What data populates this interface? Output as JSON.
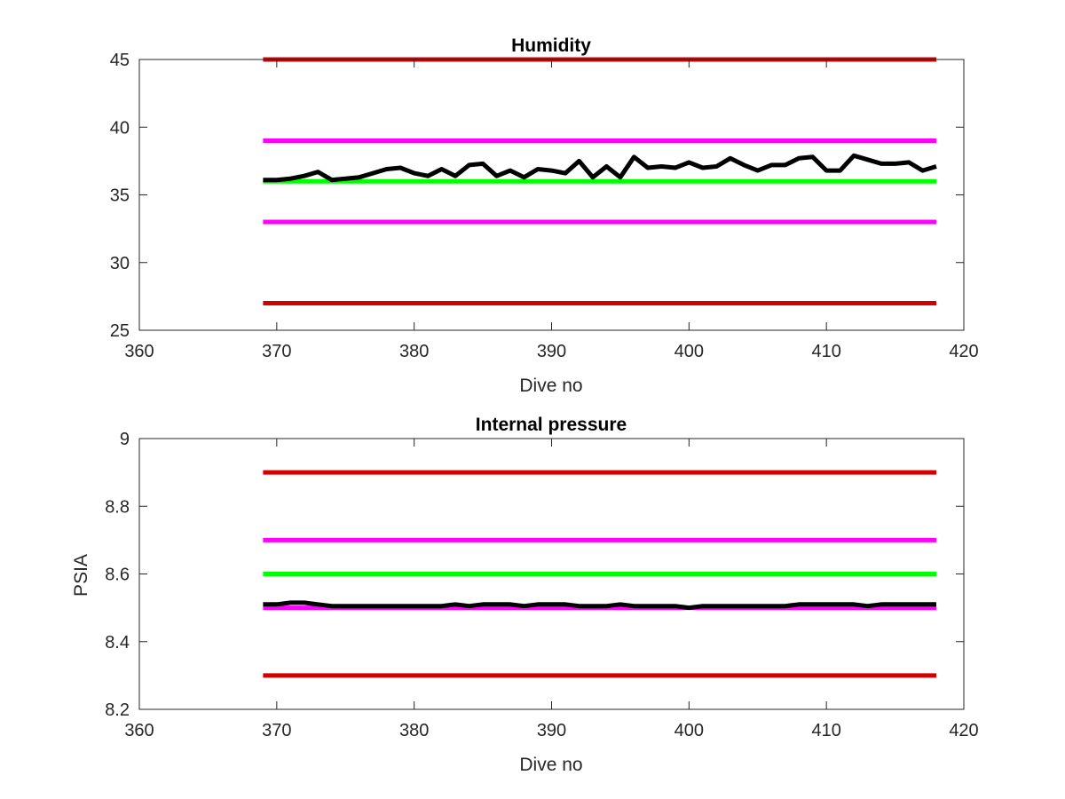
{
  "chart_data": [
    {
      "type": "line",
      "title": "Humidity",
      "xlabel": "Dive no",
      "ylabel": "",
      "xlim": [
        360,
        420
      ],
      "ylim": [
        25,
        45
      ],
      "xticks": [
        "360",
        "370",
        "380",
        "390",
        "400",
        "410",
        "420"
      ],
      "yticks": [
        "25",
        "30",
        "35",
        "40",
        "45"
      ],
      "series": [
        {
          "color": "#d40000",
          "x": [
            369,
            418
          ],
          "values": [
            45,
            45
          ]
        },
        {
          "color": "#ff00ff",
          "x": [
            369,
            418
          ],
          "values": [
            39,
            39
          ]
        },
        {
          "color": "#00ff00",
          "x": [
            369,
            418
          ],
          "values": [
            36,
            36
          ]
        },
        {
          "color": "#ff00ff",
          "x": [
            369,
            418
          ],
          "values": [
            33,
            33
          ]
        },
        {
          "color": "#d40000",
          "x": [
            369,
            418
          ],
          "values": [
            27,
            27
          ]
        },
        {
          "color": "#000000",
          "x": [
            369,
            370,
            371,
            372,
            373,
            374,
            375,
            376,
            377,
            378,
            379,
            380,
            381,
            382,
            383,
            384,
            385,
            386,
            387,
            388,
            389,
            390,
            391,
            392,
            393,
            394,
            395,
            396,
            397,
            398,
            399,
            400,
            401,
            402,
            403,
            404,
            405,
            406,
            407,
            408,
            409,
            410,
            411,
            412,
            413,
            414,
            415,
            416,
            417,
            418
          ],
          "values": [
            36.1,
            36.1,
            36.2,
            36.4,
            36.7,
            36.1,
            36.2,
            36.3,
            36.6,
            36.9,
            37.0,
            36.6,
            36.4,
            36.9,
            36.4,
            37.2,
            37.3,
            36.4,
            36.8,
            36.3,
            36.9,
            36.8,
            36.6,
            37.5,
            36.3,
            37.1,
            36.3,
            37.8,
            37.0,
            37.1,
            37.0,
            37.4,
            37.0,
            37.1,
            37.7,
            37.2,
            36.8,
            37.2,
            37.2,
            37.7,
            37.8,
            36.8,
            36.8,
            37.9,
            37.6,
            37.3,
            37.3,
            37.4,
            36.8,
            37.1
          ]
        }
      ]
    },
    {
      "type": "line",
      "title": "Internal pressure",
      "xlabel": "Dive no",
      "ylabel": "PSIA",
      "xlim": [
        360,
        420
      ],
      "ylim": [
        8.2,
        9.0
      ],
      "xticks": [
        "360",
        "370",
        "380",
        "390",
        "400",
        "410",
        "420"
      ],
      "yticks": [
        "8.2",
        "8.4",
        "8.6",
        "8.8",
        "9"
      ],
      "series": [
        {
          "color": "#d40000",
          "x": [
            369,
            418
          ],
          "values": [
            8.9,
            8.9
          ]
        },
        {
          "color": "#ff00ff",
          "x": [
            369,
            418
          ],
          "values": [
            8.7,
            8.7
          ]
        },
        {
          "color": "#00ff00",
          "x": [
            369,
            418
          ],
          "values": [
            8.6,
            8.6
          ]
        },
        {
          "color": "#ff00ff",
          "x": [
            369,
            418
          ],
          "values": [
            8.5,
            8.5
          ]
        },
        {
          "color": "#d40000",
          "x": [
            369,
            418
          ],
          "values": [
            8.3,
            8.3
          ]
        },
        {
          "color": "#000000",
          "x": [
            369,
            370,
            371,
            372,
            373,
            374,
            375,
            376,
            377,
            378,
            379,
            380,
            381,
            382,
            383,
            384,
            385,
            386,
            387,
            388,
            389,
            390,
            391,
            392,
            393,
            394,
            395,
            396,
            397,
            398,
            399,
            400,
            401,
            402,
            403,
            404,
            405,
            406,
            407,
            408,
            409,
            410,
            411,
            412,
            413,
            414,
            415,
            416,
            417,
            418
          ],
          "values": [
            8.51,
            8.51,
            8.515,
            8.515,
            8.51,
            8.505,
            8.505,
            8.505,
            8.505,
            8.505,
            8.505,
            8.505,
            8.505,
            8.505,
            8.51,
            8.505,
            8.51,
            8.51,
            8.51,
            8.505,
            8.51,
            8.51,
            8.51,
            8.505,
            8.505,
            8.505,
            8.51,
            8.505,
            8.505,
            8.505,
            8.505,
            8.5,
            8.505,
            8.505,
            8.505,
            8.505,
            8.505,
            8.505,
            8.505,
            8.51,
            8.51,
            8.51,
            8.51,
            8.51,
            8.505,
            8.51,
            8.51,
            8.51,
            8.51,
            8.51
          ]
        }
      ]
    }
  ]
}
